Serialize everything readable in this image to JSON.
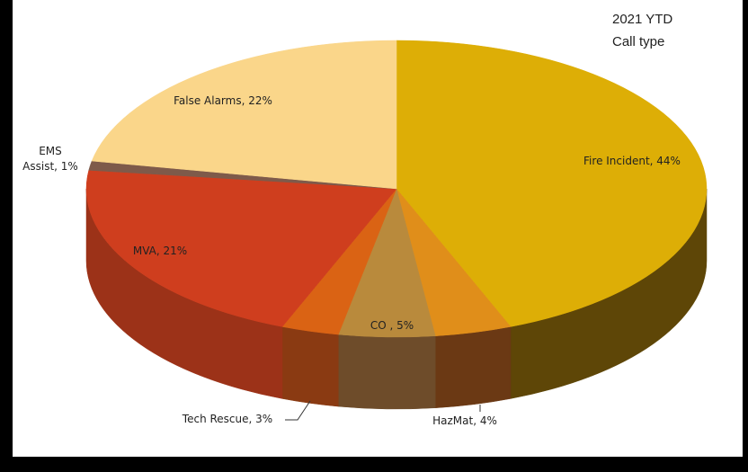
{
  "chart_data": {
    "type": "pie",
    "style": "3d",
    "title": "2021 YTD",
    "subtitle": "Call type",
    "slices": [
      {
        "name": "Fire Incident",
        "percent": 44,
        "label": "Fire Incident, 44%",
        "top_color": "#DDAE06",
        "side_color": "#5E4607"
      },
      {
        "name": "HazMat",
        "percent": 4,
        "label": "HazMat, 4%",
        "top_color": "#E08E1A",
        "side_color": "#6B3914"
      },
      {
        "name": "CO",
        "percent": 5,
        "label": "CO , 5%",
        "top_color": "#B98A3C",
        "side_color": "#6E4C2A"
      },
      {
        "name": "Tech Rescue",
        "percent": 3,
        "label": "Tech Rescue, 3%",
        "top_color": "#DA6314",
        "side_color": "#8A3A12"
      },
      {
        "name": "MVA",
        "percent": 21,
        "label": "MVA, 21%",
        "top_color": "#CF3E1E",
        "side_color": "#9C3218"
      },
      {
        "name": "EMS Assist",
        "percent": 1,
        "label": "EMS Assist, 1%",
        "label_lines": [
          "EMS",
          "Assist, 1%"
        ],
        "top_color": "#7E5A4A",
        "side_color": "#5A3F33"
      },
      {
        "name": "False Alarms",
        "percent": 22,
        "label": "False Alarms, 22%",
        "top_color": "#FAD68A",
        "side_color": "#C9A765"
      }
    ]
  }
}
